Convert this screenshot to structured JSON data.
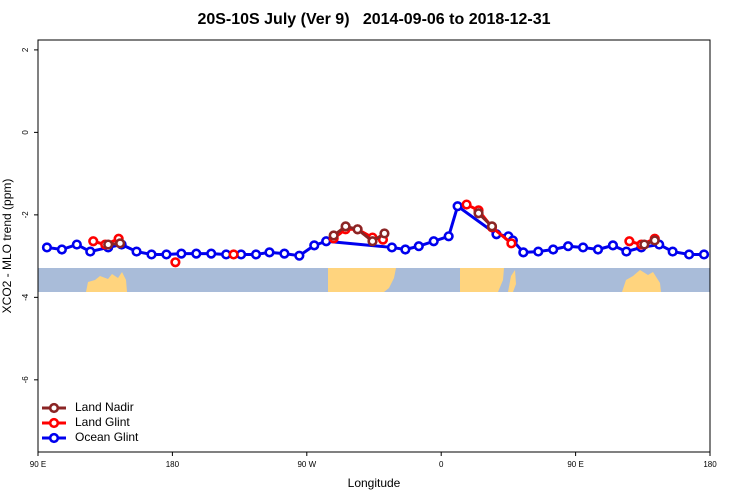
{
  "chart_data": {
    "type": "line",
    "title": "20S-10S July (Ver 9)   2014-09-06 to 2018-12-31",
    "x_label": "Longitude",
    "y_label": "XCO2 - MLO trend (ppm)",
    "xlim": [
      90,
      540
    ],
    "ylim": [
      -7.75,
      2.24
    ],
    "xticks": [
      {
        "value": 90,
        "label": "90 E"
      },
      {
        "value": 180,
        "label": "180"
      },
      {
        "value": 270,
        "label": "90 W"
      },
      {
        "value": 360,
        "label": "0"
      },
      {
        "value": 450,
        "label": "90 E"
      },
      {
        "value": 540,
        "label": "180"
      }
    ],
    "yticks": [
      2,
      0,
      -2,
      -4,
      -6
    ],
    "legend": "bottomleft",
    "series": [
      {
        "name": "Land Nadir",
        "color": "#8b2525",
        "x": [
          137,
          145,
          null,
          288,
          296,
          304,
          314,
          322,
          null,
          385,
          394,
          null,
          496,
          503
        ],
        "values": [
          -2.72,
          -2.69,
          null,
          -2.5,
          -2.28,
          -2.35,
          -2.64,
          -2.45,
          null,
          -1.96,
          -2.28,
          null,
          -2.72,
          -2.62
        ]
      },
      {
        "name": "Land Glint",
        "color": "#ff0000",
        "x": [
          127,
          135,
          144,
          null,
          182,
          null,
          221,
          null,
          288,
          296,
          304,
          314,
          321,
          null,
          377,
          385,
          394,
          407,
          null,
          486,
          494,
          503
        ],
        "values": [
          -2.64,
          -2.72,
          -2.58,
          null,
          -3.15,
          null,
          -2.96,
          null,
          -2.57,
          -2.35,
          -2.35,
          -2.55,
          -2.6,
          null,
          -1.75,
          -1.89,
          -2.3,
          -2.69,
          null,
          -2.64,
          -2.72,
          -2.58
        ]
      },
      {
        "name": "Ocean Glint",
        "color": "#0000ee",
        "x": [
          96,
          106,
          116,
          125,
          137,
          146,
          156,
          166,
          176,
          186,
          196,
          206,
          216,
          226,
          236,
          245,
          255,
          265,
          275,
          283,
          327,
          336,
          345,
          355,
          365,
          371,
          397,
          405,
          408,
          415,
          425,
          435,
          445,
          455,
          465,
          475,
          484,
          494,
          506,
          515,
          526,
          536
        ],
        "values": [
          -2.79,
          -2.84,
          -2.72,
          -2.89,
          -2.79,
          -2.72,
          -2.89,
          -2.96,
          -2.96,
          -2.94,
          -2.94,
          -2.94,
          -2.96,
          -2.96,
          -2.96,
          -2.91,
          -2.94,
          -2.99,
          -2.74,
          -2.64,
          -2.79,
          -2.84,
          -2.76,
          -2.64,
          -2.52,
          -1.79,
          -2.47,
          -2.52,
          -2.62,
          -2.91,
          -2.89,
          -2.84,
          -2.76,
          -2.79,
          -2.84,
          -2.74,
          -2.89,
          -2.79,
          -2.72,
          -2.89,
          -2.96,
          -2.96
        ]
      }
    ]
  }
}
